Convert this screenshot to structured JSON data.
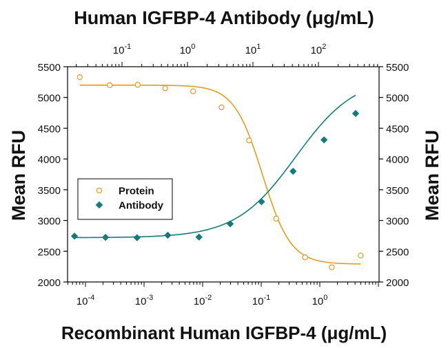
{
  "chart_data": {
    "type": "scatter",
    "title": "Human IGFBP-4 Antibody (μg/mL)",
    "xlabel": "Recombinant Human IGFBP-4 (μg/mL)",
    "ylabel_left": "Mean RFU",
    "ylabel_right": "Mean RFU",
    "x_scale": "log",
    "x2_scale": "log",
    "ylim": [
      2000,
      5500
    ],
    "y_ticks": [
      "2000",
      "2500",
      "3000",
      "3500",
      "4000",
      "4500",
      "5000",
      "5500"
    ],
    "x_ticks_bottom": [
      {
        "base": "10",
        "exp": "-4",
        "value": 0.0001
      },
      {
        "base": "10",
        "exp": "-3",
        "value": 0.001
      },
      {
        "base": "10",
        "exp": "-2",
        "value": 0.01
      },
      {
        "base": "10",
        "exp": "-1",
        "value": 0.1
      },
      {
        "base": "10",
        "exp": "0",
        "value": 1
      }
    ],
    "x_ticks_top": [
      {
        "base": "10",
        "exp": "-1",
        "value": 0.1
      },
      {
        "base": "10",
        "exp": "0",
        "value": 1
      },
      {
        "base": "10",
        "exp": "1",
        "value": 10
      },
      {
        "base": "10",
        "exp": "2",
        "value": 100
      }
    ],
    "grid": false,
    "legend_position": "center-left",
    "series": [
      {
        "name": "Protein",
        "axis": "bottom",
        "marker": "open-circle",
        "color": "#E39A1E",
        "points": [
          {
            "x": 8e-05,
            "y": 5330
          },
          {
            "x": 0.00026,
            "y": 5200
          },
          {
            "x": 0.00078,
            "y": 5205
          },
          {
            "x": 0.0023,
            "y": 5150
          },
          {
            "x": 0.0069,
            "y": 5100
          },
          {
            "x": 0.021,
            "y": 4840
          },
          {
            "x": 0.062,
            "y": 4300
          },
          {
            "x": 0.18,
            "y": 3030
          },
          {
            "x": 0.56,
            "y": 2400
          },
          {
            "x": 1.6,
            "y": 2240
          },
          {
            "x": 5.0,
            "y": 2430
          }
        ],
        "fit": {
          "bottom": 2290,
          "top": 5200,
          "ec50": 0.105,
          "hill": 1.8
        }
      },
      {
        "name": "Antibody",
        "axis": "top",
        "marker": "filled-diamond",
        "color": "#137B78",
        "points": [
          {
            "x": 0.0188,
            "y": 2745
          },
          {
            "x": 0.056,
            "y": 2725
          },
          {
            "x": 0.17,
            "y": 2720
          },
          {
            "x": 0.5,
            "y": 2760
          },
          {
            "x": 1.5,
            "y": 2730
          },
          {
            "x": 4.5,
            "y": 2945
          },
          {
            "x": 13.5,
            "y": 3305
          },
          {
            "x": 41,
            "y": 3800
          },
          {
            "x": 122,
            "y": 4310
          },
          {
            "x": 370,
            "y": 4740
          }
        ],
        "fit": {
          "bottom": 2720,
          "top": 5350,
          "ec50": 45,
          "hill": 0.95
        }
      }
    ]
  }
}
